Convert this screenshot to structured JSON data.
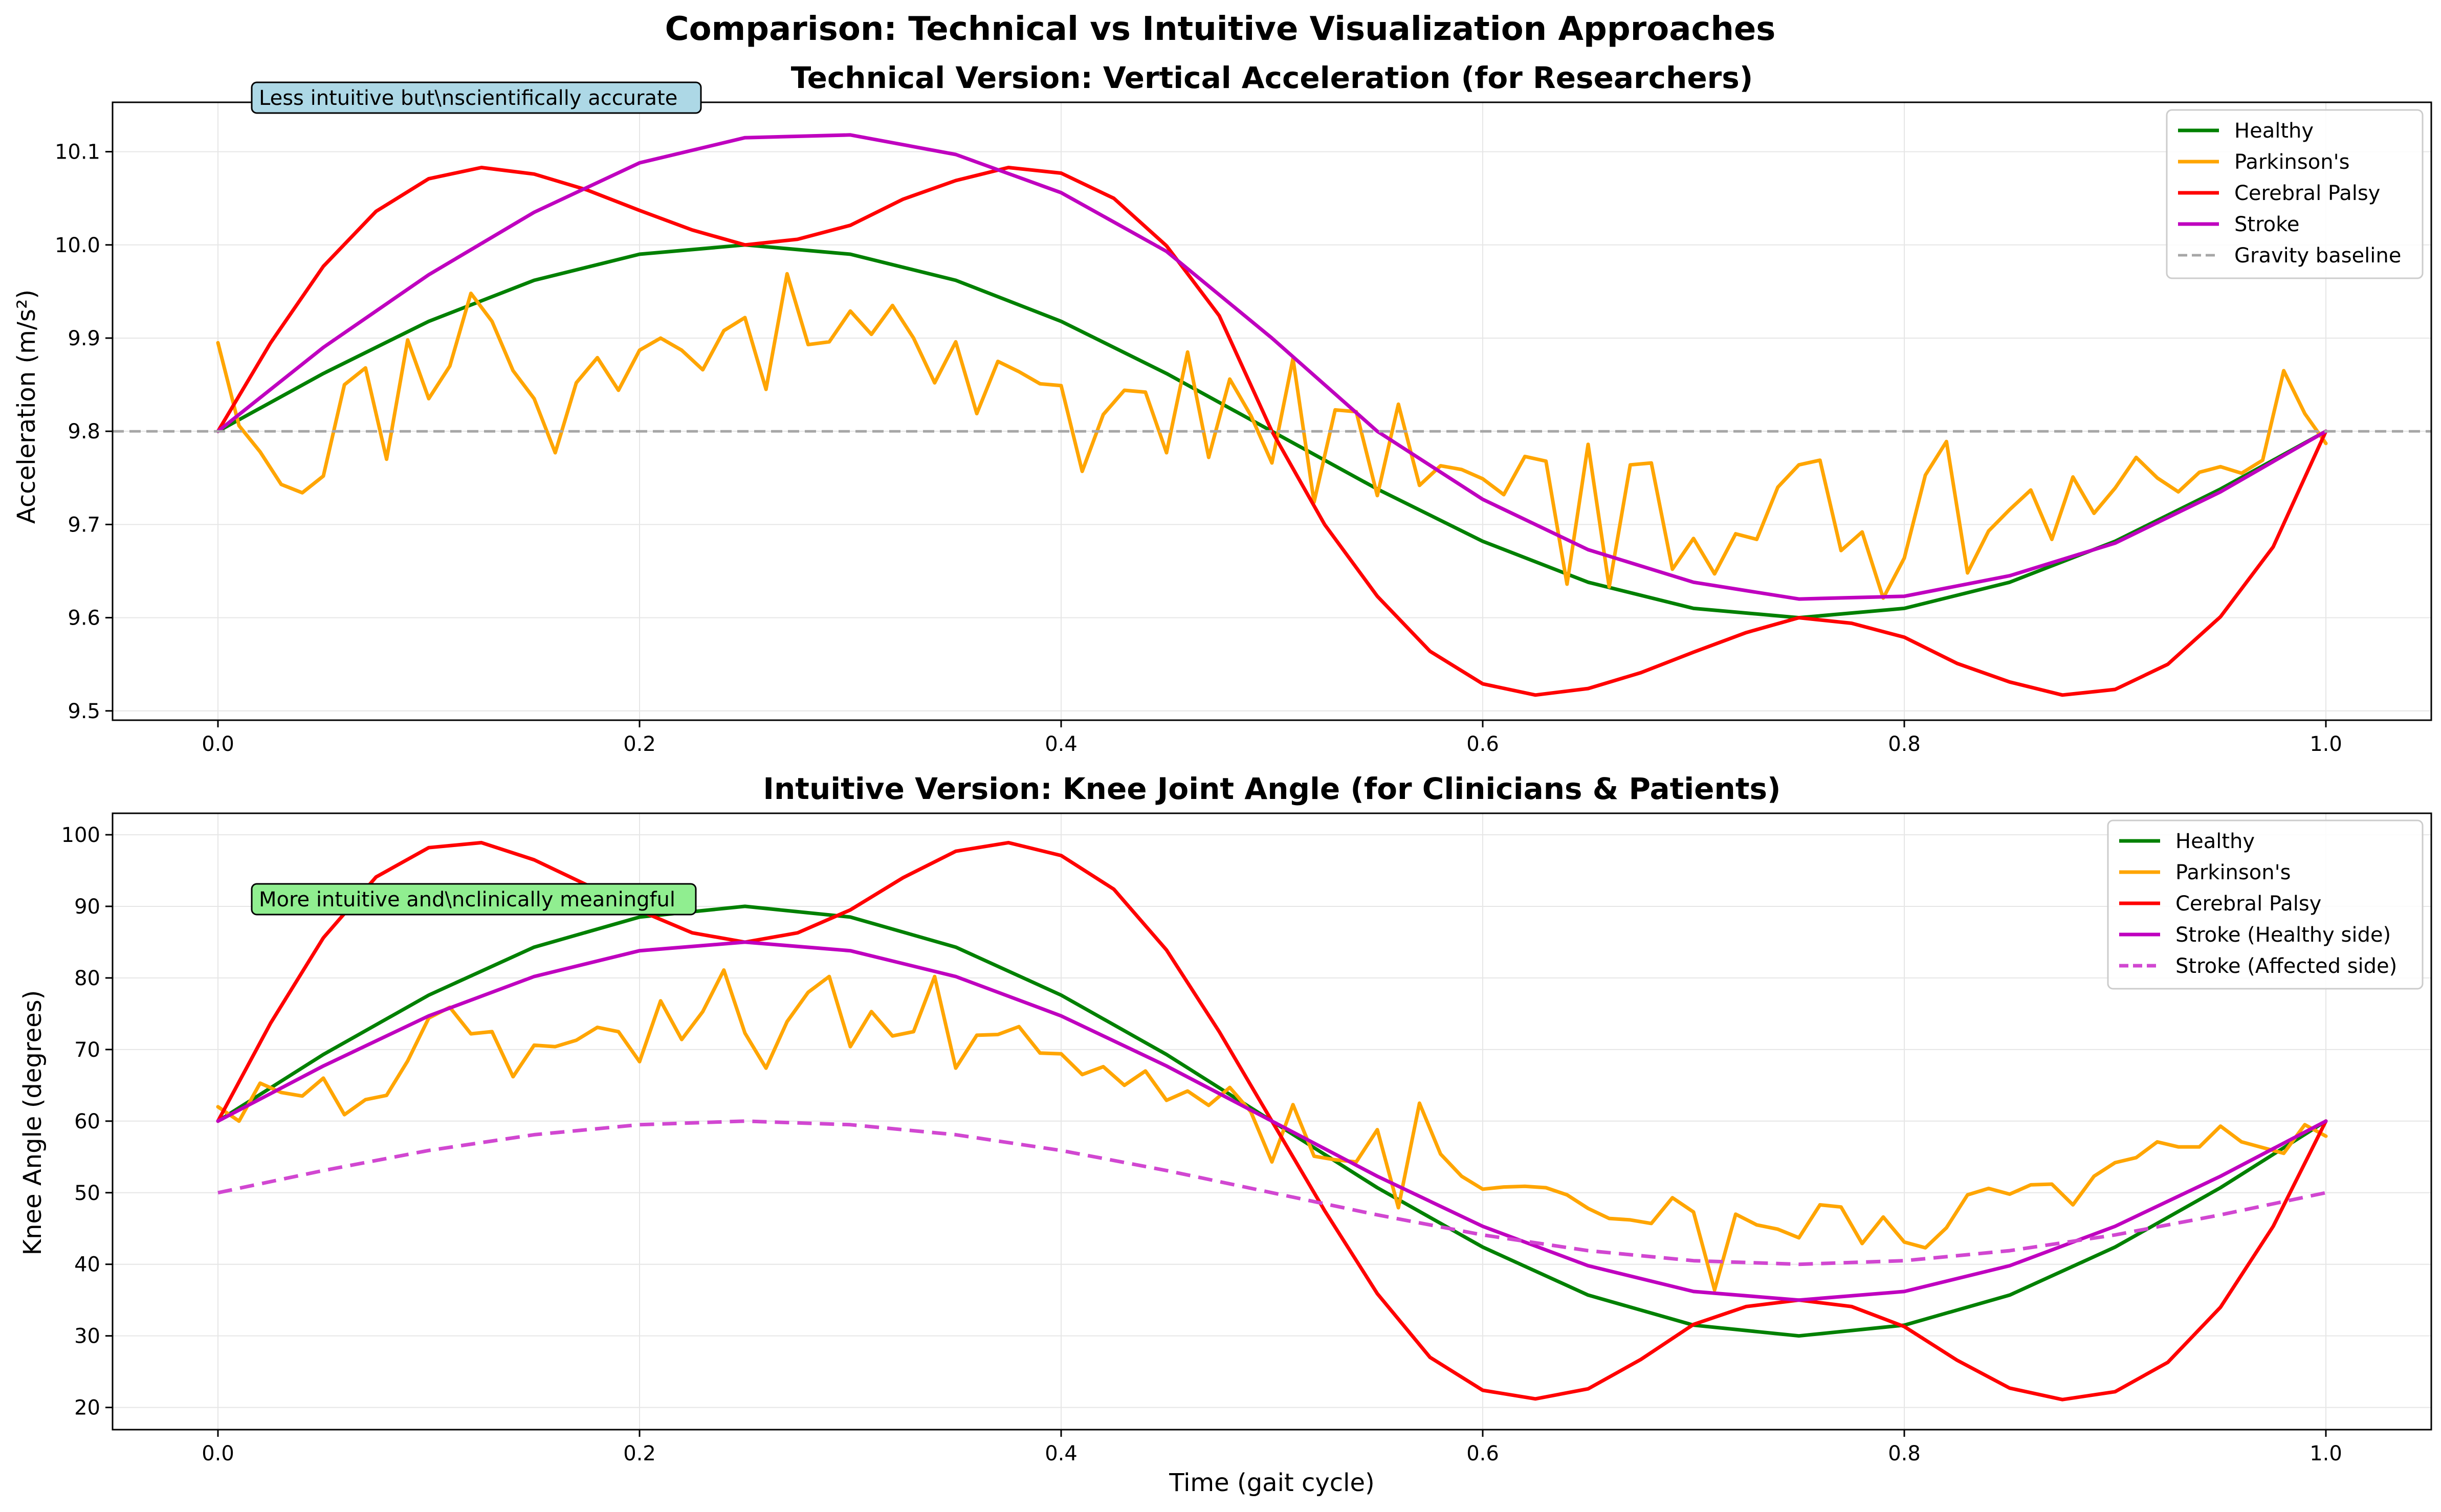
{
  "figure": {
    "suptitle": "Comparison: Technical vs Intuitive Visualization Approaches"
  },
  "chart_data": [
    {
      "type": "line",
      "title": "Technical Version: Vertical Acceleration (for Researchers)",
      "xlabel": "",
      "ylabel": "Acceleration (m/s²)",
      "xlim": [
        -0.05,
        1.05
      ],
      "ylim": [
        9.49,
        10.153
      ],
      "xticks": [
        "0.0",
        "0.2",
        "0.4",
        "0.6",
        "0.8",
        "1.0"
      ],
      "yticks": [
        "9.5",
        "9.6",
        "9.7",
        "9.8",
        "9.9",
        "10.0",
        "10.1"
      ],
      "grid": true,
      "legend_position": "upper right",
      "annotation": {
        "text": "Less intuitive but\\nscientifically accurate",
        "x": 0.02,
        "y": 10.152,
        "background": "#add8e6"
      },
      "series": [
        {
          "name": "Healthy",
          "color": "#008000",
          "style": "solid",
          "x": [
            0,
            0.05,
            0.1,
            0.15,
            0.2,
            0.25,
            0.3,
            0.35,
            0.4,
            0.45,
            0.5,
            0.55,
            0.6,
            0.65,
            0.7,
            0.75,
            0.8,
            0.85,
            0.9,
            0.95,
            1.0
          ],
          "y": [
            9.8,
            9.862,
            9.918,
            9.962,
            9.99,
            10.0,
            9.99,
            9.962,
            9.918,
            9.862,
            9.8,
            9.738,
            9.682,
            9.638,
            9.61,
            9.6,
            9.61,
            9.638,
            9.682,
            9.738,
            9.8
          ]
        },
        {
          "name": "Parkinson's",
          "color": "#ffa500",
          "style": "solid",
          "x": [
            0,
            0.01,
            0.02,
            0.03,
            0.04,
            0.05,
            0.06,
            0.07,
            0.08,
            0.09,
            0.1,
            0.11,
            0.12,
            0.13,
            0.14,
            0.15,
            0.16,
            0.17,
            0.18,
            0.19,
            0.2,
            0.21,
            0.22,
            0.23,
            0.24,
            0.25,
            0.26,
            0.27,
            0.28,
            0.29,
            0.3,
            0.31,
            0.32,
            0.33,
            0.34,
            0.35,
            0.36,
            0.37,
            0.38,
            0.39,
            0.4,
            0.41,
            0.42,
            0.43,
            0.44,
            0.45,
            0.46,
            0.47,
            0.48,
            0.49,
            0.5,
            0.51,
            0.52,
            0.53,
            0.54,
            0.55,
            0.56,
            0.57,
            0.58,
            0.59,
            0.6,
            0.61,
            0.62,
            0.63,
            0.64,
            0.65,
            0.66,
            0.67,
            0.68,
            0.69,
            0.7,
            0.71,
            0.72,
            0.73,
            0.74,
            0.75,
            0.76,
            0.77,
            0.78,
            0.79,
            0.8,
            0.81,
            0.82,
            0.83,
            0.84,
            0.85,
            0.86,
            0.87,
            0.88,
            0.89,
            0.9,
            0.91,
            0.92,
            0.93,
            0.94,
            0.95,
            0.96,
            0.97,
            0.98,
            0.99,
            1.0
          ],
          "y": [
            9.895,
            9.806,
            9.778,
            9.743,
            9.734,
            9.752,
            9.85,
            9.868,
            9.77,
            9.898,
            9.835,
            9.87,
            9.948,
            9.918,
            9.865,
            9.835,
            9.777,
            9.852,
            9.879,
            9.844,
            9.887,
            9.9,
            9.887,
            9.866,
            9.908,
            9.922,
            9.845,
            9.969,
            9.893,
            9.896,
            9.929,
            9.904,
            9.935,
            9.9,
            9.852,
            9.896,
            9.819,
            9.875,
            9.864,
            9.851,
            9.849,
            9.757,
            9.818,
            9.844,
            9.842,
            9.777,
            9.885,
            9.772,
            9.856,
            9.817,
            9.766,
            9.878,
            9.724,
            9.823,
            9.821,
            9.731,
            9.829,
            9.742,
            9.763,
            9.759,
            9.749,
            9.732,
            9.773,
            9.768,
            9.636,
            9.786,
            9.633,
            9.764,
            9.766,
            9.652,
            9.685,
            9.647,
            9.69,
            9.684,
            9.74,
            9.764,
            9.769,
            9.672,
            9.692,
            9.621,
            9.664,
            9.753,
            9.789,
            9.648,
            9.693,
            9.716,
            9.737,
            9.684,
            9.751,
            9.712,
            9.739,
            9.772,
            9.75,
            9.735,
            9.756,
            9.762,
            9.755,
            9.769,
            9.865,
            9.819,
            9.787
          ]
        },
        {
          "name": "Cerebral Palsy",
          "color": "#ff0000",
          "style": "solid",
          "x": [
            0,
            0.025,
            0.05,
            0.075,
            0.1,
            0.125,
            0.15,
            0.175,
            0.2,
            0.225,
            0.25,
            0.275,
            0.3,
            0.325,
            0.35,
            0.375,
            0.4,
            0.425,
            0.45,
            0.475,
            0.5,
            0.525,
            0.55,
            0.575,
            0.6,
            0.625,
            0.65,
            0.675,
            0.7,
            0.725,
            0.75,
            0.775,
            0.8,
            0.825,
            0.85,
            0.875,
            0.9,
            0.925,
            0.95,
            0.975,
            1.0
          ],
          "y": [
            9.8,
            9.895,
            9.977,
            10.036,
            10.071,
            10.083,
            10.076,
            10.059,
            10.037,
            10.016,
            10.0,
            10.006,
            10.021,
            10.049,
            10.069,
            10.083,
            10.077,
            10.05,
            9.999,
            9.924,
            9.8,
            9.7,
            9.623,
            9.564,
            9.529,
            9.517,
            9.524,
            9.541,
            9.563,
            9.584,
            9.6,
            9.594,
            9.579,
            9.551,
            9.531,
            9.517,
            9.523,
            9.55,
            9.601,
            9.676,
            9.8
          ]
        },
        {
          "name": "Stroke",
          "color": "#bf00bf",
          "style": "solid",
          "x": [
            0,
            0.05,
            0.1,
            0.15,
            0.2,
            0.25,
            0.3,
            0.35,
            0.4,
            0.45,
            0.5,
            0.55,
            0.6,
            0.65,
            0.7,
            0.75,
            0.8,
            0.85,
            0.9,
            0.95,
            1.0
          ],
          "y": [
            9.8,
            9.89,
            9.968,
            10.035,
            10.088,
            10.115,
            10.118,
            10.097,
            10.056,
            9.993,
            9.9,
            9.8,
            9.727,
            9.673,
            9.638,
            9.62,
            9.623,
            9.645,
            9.68,
            9.735,
            9.8
          ]
        },
        {
          "name": "Gravity baseline",
          "color": "#a6a6a6",
          "style": "dashed",
          "x": [
            -0.05,
            1.05
          ],
          "y": [
            9.8,
            9.8
          ]
        }
      ]
    },
    {
      "type": "line",
      "title": "Intuitive Version: Knee Joint Angle (for Clinicians & Patients)",
      "xlabel": "Time (gait cycle)",
      "ylabel": "Knee Angle (degrees)",
      "xlim": [
        -0.05,
        1.05
      ],
      "ylim": [
        16.9,
        103.0
      ],
      "xticks": [
        "0.0",
        "0.2",
        "0.4",
        "0.6",
        "0.8",
        "1.0"
      ],
      "yticks": [
        "20",
        "30",
        "40",
        "50",
        "60",
        "70",
        "80",
        "90",
        "100"
      ],
      "grid": true,
      "legend_position": "upper right",
      "annotation": {
        "text": "More intuitive and\\nclinically meaningful",
        "x": 0.02,
        "y": 90.5,
        "background": "#90ee90"
      },
      "series": [
        {
          "name": "Healthy",
          "color": "#008000",
          "style": "solid",
          "x": [
            0,
            0.05,
            0.1,
            0.15,
            0.2,
            0.25,
            0.3,
            0.35,
            0.4,
            0.45,
            0.5,
            0.55,
            0.6,
            0.65,
            0.7,
            0.75,
            0.8,
            0.85,
            0.9,
            0.95,
            1.0
          ],
          "y": [
            60,
            69.3,
            77.6,
            84.3,
            88.5,
            90,
            88.5,
            84.3,
            77.6,
            69.3,
            60,
            50.7,
            42.4,
            35.7,
            31.5,
            30,
            31.5,
            35.7,
            42.4,
            50.7,
            60
          ]
        },
        {
          "name": "Parkinson's",
          "color": "#ffa500",
          "style": "solid",
          "x": [
            0,
            0.01,
            0.02,
            0.03,
            0.04,
            0.05,
            0.06,
            0.07,
            0.08,
            0.09,
            0.1,
            0.11,
            0.12,
            0.13,
            0.14,
            0.15,
            0.16,
            0.17,
            0.18,
            0.19,
            0.2,
            0.21,
            0.22,
            0.23,
            0.24,
            0.25,
            0.26,
            0.27,
            0.28,
            0.29,
            0.3,
            0.31,
            0.32,
            0.33,
            0.34,
            0.35,
            0.36,
            0.37,
            0.38,
            0.39,
            0.4,
            0.41,
            0.42,
            0.43,
            0.44,
            0.45,
            0.46,
            0.47,
            0.48,
            0.49,
            0.5,
            0.51,
            0.52,
            0.53,
            0.54,
            0.55,
            0.56,
            0.57,
            0.58,
            0.59,
            0.6,
            0.61,
            0.62,
            0.63,
            0.64,
            0.65,
            0.66,
            0.67,
            0.68,
            0.69,
            0.7,
            0.71,
            0.72,
            0.73,
            0.74,
            0.75,
            0.76,
            0.77,
            0.78,
            0.79,
            0.8,
            0.81,
            0.82,
            0.83,
            0.84,
            0.85,
            0.86,
            0.87,
            0.88,
            0.89,
            0.9,
            0.91,
            0.92,
            0.93,
            0.94,
            0.95,
            0.96,
            0.97,
            0.98,
            0.99,
            1.0
          ],
          "y": [
            62,
            60,
            65.3,
            64,
            63.5,
            66,
            60.9,
            63,
            63.6,
            68.4,
            74.4,
            75.9,
            72.2,
            72.5,
            66.2,
            70.6,
            70.4,
            71.3,
            73.1,
            72.5,
            68.3,
            76.8,
            71.4,
            75.3,
            81.1,
            72.3,
            67.4,
            73.9,
            78,
            80.2,
            70.4,
            75.3,
            71.9,
            72.5,
            80.2,
            67.4,
            72,
            72.1,
            73.2,
            69.5,
            69.4,
            66.5,
            67.6,
            65,
            67,
            62.9,
            64.2,
            62.2,
            64.7,
            61.3,
            54.3,
            62.3,
            55.1,
            54.6,
            54.3,
            58.8,
            47.9,
            62.5,
            55.4,
            52.3,
            50.5,
            50.8,
            50.9,
            50.7,
            49.7,
            47.8,
            46.4,
            46.2,
            45.7,
            49.3,
            47.3,
            36.4,
            47,
            45.5,
            44.9,
            43.7,
            48.3,
            48,
            42.9,
            46.6,
            43.1,
            42.3,
            45.1,
            49.7,
            50.6,
            49.8,
            51.1,
            51.2,
            48.3,
            52.3,
            54.2,
            54.9,
            57.1,
            56.4,
            56.4,
            59.3,
            57.1,
            56.3,
            55.5,
            59.5,
            57.9
          ]
        },
        {
          "name": "Cerebral Palsy",
          "color": "#ff0000",
          "style": "solid",
          "x": [
            0,
            0.025,
            0.05,
            0.075,
            0.1,
            0.125,
            0.15,
            0.175,
            0.2,
            0.225,
            0.25,
            0.275,
            0.3,
            0.325,
            0.35,
            0.375,
            0.4,
            0.425,
            0.45,
            0.475,
            0.5,
            0.525,
            0.55,
            0.575,
            0.6,
            0.625,
            0.65,
            0.675,
            0.7,
            0.725,
            0.75,
            0.775,
            0.8,
            0.825,
            0.85,
            0.875,
            0.9,
            0.925,
            0.95,
            0.975,
            1.0
          ],
          "y": [
            60,
            73.7,
            85.6,
            94.1,
            98.2,
            98.9,
            96.5,
            93,
            89.4,
            86.3,
            85,
            86.3,
            89.5,
            94,
            97.7,
            98.9,
            97.1,
            92.4,
            83.9,
            72.5,
            60,
            47.5,
            35.9,
            27,
            22.4,
            21.2,
            22.6,
            26.7,
            31.6,
            34.1,
            35,
            34.1,
            31.3,
            26.6,
            22.7,
            21.1,
            22.2,
            26.3,
            34,
            45.3,
            60
          ]
        },
        {
          "name": "Stroke (Healthy side)",
          "color": "#bf00bf",
          "style": "solid",
          "x": [
            0,
            0.05,
            0.1,
            0.15,
            0.2,
            0.25,
            0.3,
            0.35,
            0.4,
            0.45,
            0.5,
            0.55,
            0.6,
            0.65,
            0.7,
            0.75,
            0.8,
            0.85,
            0.9,
            0.95,
            1.0
          ],
          "y": [
            60,
            67.7,
            74.7,
            80.2,
            83.8,
            85,
            83.8,
            80.2,
            74.7,
            67.7,
            60,
            52.3,
            45.3,
            39.8,
            36.2,
            35,
            36.2,
            39.8,
            45.3,
            52.3,
            60
          ]
        },
        {
          "name": "Stroke (Affected side)",
          "color": "#d147d1",
          "style": "dashed",
          "x": [
            0,
            0.05,
            0.1,
            0.15,
            0.2,
            0.25,
            0.3,
            0.35,
            0.4,
            0.45,
            0.5,
            0.55,
            0.6,
            0.65,
            0.7,
            0.75,
            0.8,
            0.85,
            0.9,
            0.95,
            1.0
          ],
          "y": [
            50,
            53.1,
            55.9,
            58.1,
            59.5,
            60,
            59.5,
            58.1,
            55.9,
            53.1,
            50,
            46.9,
            44.1,
            41.9,
            40.5,
            40,
            40.5,
            41.9,
            44.1,
            46.9,
            50
          ]
        }
      ]
    }
  ]
}
